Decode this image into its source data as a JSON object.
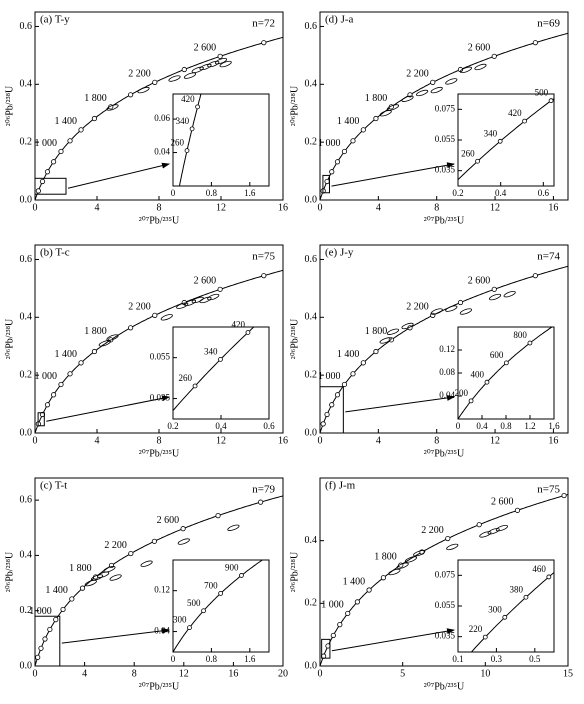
{
  "chart_data": [
    {
      "type": "scatter",
      "title": "(a) T-y",
      "annotation": "n=72",
      "x_label": "²⁰⁷Pb/²³⁵U",
      "y_label": "²⁰⁶Pb/²³⁸U",
      "x": [
        10,
        10.5,
        11,
        11.5,
        12,
        12.3,
        7,
        9,
        5
      ],
      "values": [
        0.43,
        0.45,
        0.46,
        0.47,
        0.48,
        0.47,
        0.38,
        0.42,
        0.32
      ],
      "xlim": [
        0,
        16
      ],
      "xticks": [
        0,
        4,
        8,
        12,
        16
      ],
      "ylim": [
        0,
        0.65
      ],
      "yticks": [
        {
          "value": 0,
          "label": "0.0"
        },
        0.2,
        0.4,
        0.6
      ],
      "age_labels": [
        {
          "value": 1000,
          "label": "1 000"
        },
        {
          "value": 1400,
          "label": "1 400"
        },
        {
          "value": 1800,
          "label": "1 800"
        },
        {
          "value": 2200,
          "label": "2 200"
        },
        {
          "value": 2600,
          "label": "2 600"
        }
      ],
      "inset": {
        "xlim": [
          0,
          2
        ],
        "xticks": [
          0,
          0.8,
          1.6
        ],
        "ylim": [
          0.02,
          0.075
        ],
        "yticks": [
          0.04,
          0.06
        ],
        "age_labels": [
          260,
          340,
          420
        ]
      }
    },
    {
      "type": "scatter",
      "title": "(b) T-c",
      "annotation": "n=75",
      "x_label": "²⁰⁷Pb/²³⁵U",
      "y_label": "²⁰⁶Pb/²³⁸U",
      "x": [
        4.5,
        5,
        8.5,
        9.5,
        10,
        10.5,
        11,
        11.5
      ],
      "values": [
        0.31,
        0.33,
        0.4,
        0.44,
        0.45,
        0.46,
        0.46,
        0.47
      ],
      "xlim": [
        0,
        16
      ],
      "xticks": [
        0,
        4,
        8,
        12,
        16
      ],
      "ylim": [
        0,
        0.65
      ],
      "yticks": [
        {
          "value": 0,
          "label": "0.0"
        },
        0.2,
        0.4,
        0.6
      ],
      "age_labels": [
        {
          "value": 1000,
          "label": "1 000"
        },
        {
          "value": 1400,
          "label": "1 400"
        },
        {
          "value": 1800,
          "label": "1 800"
        },
        {
          "value": 2200,
          "label": "2 200"
        },
        {
          "value": 2600,
          "label": "2 600"
        }
      ],
      "inset": {
        "xlim": [
          0.2,
          0.6
        ],
        "xticks": [
          0.2,
          0.4,
          0.6
        ],
        "ylim": [
          0.025,
          0.07
        ],
        "yticks": [
          0.035,
          0.055
        ],
        "age_labels": [
          260,
          340,
          420
        ]
      }
    },
    {
      "type": "scatter",
      "title": "(c) T-t",
      "annotation": "n=79",
      "x_label": "²⁰⁷Pb/²³⁵U",
      "y_label": "²⁰⁶Pb/²³⁸U",
      "x": [
        4.5,
        5,
        5.5,
        6,
        6.5,
        9,
        12,
        16
      ],
      "values": [
        0.3,
        0.32,
        0.33,
        0.35,
        0.32,
        0.37,
        0.45,
        0.5
      ],
      "xlim": [
        0,
        20
      ],
      "xticks": [
        0,
        4,
        8,
        12,
        16,
        20
      ],
      "ylim": [
        0,
        0.68
      ],
      "yticks": [
        {
          "value": 0,
          "label": "0.0"
        },
        0.2,
        0.4,
        0.6
      ],
      "age_labels": [
        {
          "value": 1000,
          "label": "1 000"
        },
        {
          "value": 1400,
          "label": "1 400"
        },
        {
          "value": 1800,
          "label": "1 800"
        },
        {
          "value": 2200,
          "label": "2 200"
        },
        {
          "value": 2600,
          "label": "2 600"
        }
      ],
      "inset": {
        "xlim": [
          0,
          2
        ],
        "xticks": [
          0,
          0.8,
          1.6
        ],
        "ylim": [
          0,
          0.18
        ],
        "yticks": [
          0.04,
          0.12
        ],
        "age_labels": [
          300,
          500,
          700,
          900
        ]
      }
    },
    {
      "type": "scatter",
      "title": "(d) J-a",
      "annotation": "n=69",
      "x_label": "²⁰⁷Pb/²³⁵U",
      "y_label": "²⁰⁶Pb/²³⁸U",
      "x": [
        4.5,
        5,
        6,
        7,
        8,
        9,
        10,
        11
      ],
      "values": [
        0.3,
        0.32,
        0.35,
        0.37,
        0.38,
        0.41,
        0.45,
        0.46
      ],
      "xlim": [
        0,
        17
      ],
      "xticks": [
        0,
        4,
        8,
        12,
        16
      ],
      "ylim": [
        0,
        0.65
      ],
      "yticks": [
        {
          "value": 0,
          "label": "0.0"
        },
        0.2,
        0.4,
        0.6
      ],
      "age_labels": [
        {
          "value": 1000,
          "label": "1 000"
        },
        {
          "value": 1400,
          "label": "1 400"
        },
        {
          "value": 1800,
          "label": "1 800"
        },
        {
          "value": 2200,
          "label": "2 200"
        },
        {
          "value": 2600,
          "label": "2 600"
        }
      ],
      "inset": {
        "xlim": [
          0.2,
          0.65
        ],
        "xticks": [
          0.2,
          0.4,
          0.6
        ],
        "ylim": [
          0.025,
          0.085
        ],
        "yticks": [
          0.035,
          0.055,
          0.075
        ],
        "age_labels": [
          260,
          340,
          420,
          500
        ]
      }
    },
    {
      "type": "scatter",
      "title": "(e) J-y",
      "annotation": "n=74",
      "x_label": "²⁰⁷Pb/²³⁵U",
      "y_label": "²⁰⁶Pb/²³⁸U",
      "x": [
        4.5,
        5,
        6,
        8,
        9,
        10,
        12,
        13
      ],
      "values": [
        0.32,
        0.35,
        0.37,
        0.42,
        0.43,
        0.42,
        0.47,
        0.48
      ],
      "xlim": [
        0,
        17
      ],
      "xticks": [
        0,
        4,
        8,
        12,
        16
      ],
      "ylim": [
        0,
        0.65
      ],
      "yticks": [
        {
          "value": 0,
          "label": "0.0"
        },
        0.2,
        0.4,
        0.6
      ],
      "age_labels": [
        {
          "value": 1000,
          "label": "1 000"
        },
        {
          "value": 1400,
          "label": "1 400"
        },
        {
          "value": 1800,
          "label": "1 800"
        },
        {
          "value": 2200,
          "label": "2 200"
        },
        {
          "value": 2600,
          "label": "2 600"
        }
      ],
      "inset": {
        "xlim": [
          0,
          1.6
        ],
        "xticks": [
          0,
          0.4,
          0.8,
          1.2,
          1.6
        ],
        "ylim": [
          0,
          0.16
        ],
        "yticks": [
          0.04,
          0.08,
          0.12
        ],
        "age_labels": [
          200,
          400,
          600,
          800
        ]
      }
    },
    {
      "type": "scatter",
      "title": "(f) J-m",
      "annotation": "n=75",
      "x_label": "²⁰⁷Pb/²³⁵U",
      "y_label": "²⁰⁶Pb/²³⁸U",
      "x": [
        4.5,
        5,
        5.5,
        6,
        8,
        10,
        10.5,
        11
      ],
      "values": [
        0.3,
        0.32,
        0.34,
        0.36,
        0.38,
        0.42,
        0.43,
        0.44
      ],
      "xlim": [
        0,
        15
      ],
      "xticks": [
        0,
        5,
        10,
        15
      ],
      "ylim": [
        0,
        0.6
      ],
      "yticks": [
        {
          "value": 0,
          "label": "0.0"
        },
        0.2,
        0.4
      ],
      "age_labels": [
        {
          "value": 1000,
          "label": "1 000"
        },
        {
          "value": 1400,
          "label": "1 400"
        },
        {
          "value": 1800,
          "label": "1 800"
        },
        {
          "value": 2200,
          "label": "2 200"
        },
        {
          "value": 2600,
          "label": "2 600"
        }
      ],
      "inset": {
        "xlim": [
          0.1,
          0.6
        ],
        "xticks": [
          0.1,
          0.3,
          0.5
        ],
        "ylim": [
          0.025,
          0.085
        ],
        "yticks": [
          0.035,
          0.055,
          0.075
        ],
        "age_labels": [
          220,
          300,
          380,
          460
        ]
      }
    }
  ]
}
